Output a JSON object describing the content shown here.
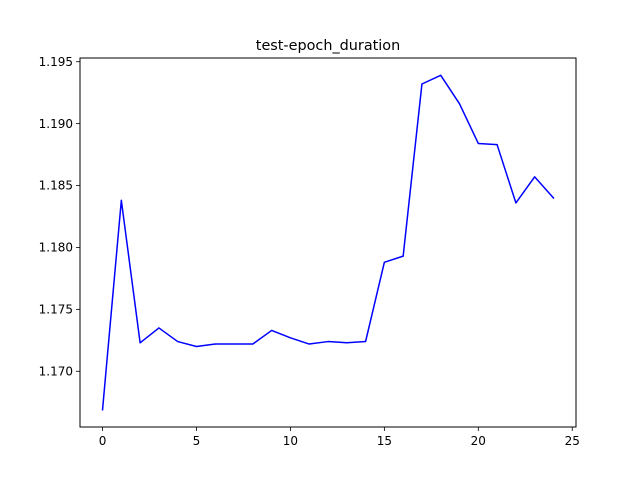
{
  "chart_data": {
    "type": "line",
    "title": "test-epoch_duration",
    "xlabel": "",
    "ylabel": "",
    "xlim": [
      -1.2,
      25.2
    ],
    "ylim": [
      1.1655,
      1.1953
    ],
    "xticks": [
      0,
      5,
      10,
      15,
      20,
      25
    ],
    "yticks": [
      1.17,
      1.175,
      1.18,
      1.185,
      1.19,
      1.195
    ],
    "ytick_labels": [
      "1.170",
      "1.175",
      "1.180",
      "1.185",
      "1.190",
      "1.195"
    ],
    "grid": false,
    "series": [
      {
        "color": "#0000ff",
        "x": [
          0,
          1,
          2,
          3,
          4,
          5,
          6,
          7,
          8,
          9,
          10,
          11,
          12,
          13,
          14,
          15,
          16,
          17,
          18,
          19,
          20,
          21,
          22,
          23,
          24
        ],
        "y": [
          1.1669,
          1.1838,
          1.1723,
          1.1735,
          1.1724,
          1.172,
          1.1722,
          1.1722,
          1.1722,
          1.1733,
          1.1727,
          1.1722,
          1.1724,
          1.1723,
          1.1724,
          1.1788,
          1.1793,
          1.1932,
          1.1939,
          1.1916,
          1.1884,
          1.1883,
          1.1836,
          1.1857,
          1.184
        ]
      }
    ]
  }
}
